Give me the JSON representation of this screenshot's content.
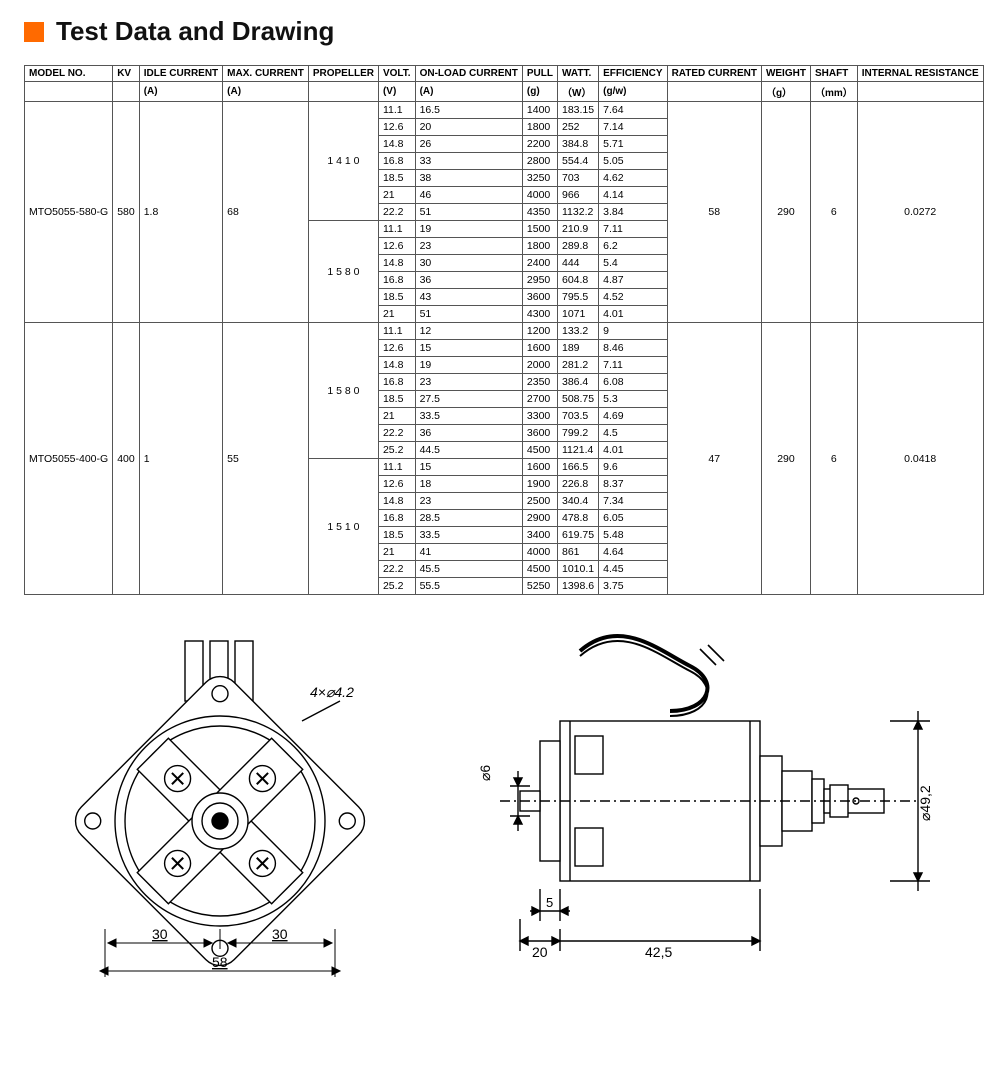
{
  "title": "Test Data and Drawing",
  "accent_color": "#ff6a00",
  "columns": [
    "MODEL NO.",
    "KV",
    "IDLE CURRENT",
    "MAX. CURRENT",
    "PROPELLER",
    "VOLT.",
    "ON-LOAD CURRENT",
    "PULL",
    "WATT.",
    "EFFICIENCY",
    "RATED CURRENT",
    "WEIGHT",
    "SHAFT",
    "INTERNAL RESISTANCE"
  ],
  "units": {
    "idle_current": "(A)",
    "max_current": "(A)",
    "volt": "(V)",
    "on_load_current": "(A)",
    "pull": "(g)",
    "watt": "（W）",
    "efficiency": "(g/w)",
    "weight": "（g）",
    "shaft": "（mm）"
  },
  "models": [
    {
      "model_no": "MTO5055-580-G",
      "kv": "580",
      "idle_current": "1.8",
      "max_current": "68",
      "rated_current": "58",
      "weight": "290",
      "shaft": "6",
      "internal_resistance": "0.0272",
      "prop_groups": [
        {
          "propeller": "1 4 1 0",
          "rows": [
            [
              "11.1",
              "16.5",
              "1400",
              "183.15",
              "7.64"
            ],
            [
              "12.6",
              "20",
              "1800",
              "252",
              "7.14"
            ],
            [
              "14.8",
              "26",
              "2200",
              "384.8",
              "5.71"
            ],
            [
              "16.8",
              "33",
              "2800",
              "554.4",
              "5.05"
            ],
            [
              "18.5",
              "38",
              "3250",
              "703",
              "4.62"
            ],
            [
              "21",
              "46",
              "4000",
              "966",
              "4.14"
            ],
            [
              "22.2",
              "51",
              "4350",
              "1132.2",
              "3.84"
            ]
          ]
        },
        {
          "propeller": "1 5 8 0",
          "rows": [
            [
              "11.1",
              "19",
              "1500",
              "210.9",
              "7.11"
            ],
            [
              "12.6",
              "23",
              "1800",
              "289.8",
              "6.2"
            ],
            [
              "14.8",
              "30",
              "2400",
              "444",
              "5.4"
            ],
            [
              "16.8",
              "36",
              "2950",
              "604.8",
              "4.87"
            ],
            [
              "18.5",
              "43",
              "3600",
              "795.5",
              "4.52"
            ],
            [
              "21",
              "51",
              "4300",
              "1071",
              "4.01"
            ]
          ]
        }
      ]
    },
    {
      "model_no": "MTO5055-400-G",
      "kv": "400",
      "idle_current": "1",
      "max_current": "55",
      "rated_current": "47",
      "weight": "290",
      "shaft": "6",
      "internal_resistance": "0.0418",
      "prop_groups": [
        {
          "propeller": "1 5 8 0",
          "rows": [
            [
              "11.1",
              "12",
              "1200",
              "133.2",
              "9"
            ],
            [
              "12.6",
              "15",
              "1600",
              "189",
              "8.46"
            ],
            [
              "14.8",
              "19",
              "2000",
              "281.2",
              "7.11"
            ],
            [
              "16.8",
              "23",
              "2350",
              "386.4",
              "6.08"
            ],
            [
              "18.5",
              "27.5",
              "2700",
              "508.75",
              "5.3"
            ],
            [
              "21",
              "33.5",
              "3300",
              "703.5",
              "4.69"
            ],
            [
              "22.2",
              "36",
              "3600",
              "799.2",
              "4.5"
            ],
            [
              "25.2",
              "44.5",
              "4500",
              "1121.4",
              "4.01"
            ]
          ]
        },
        {
          "propeller": "1 5 1 0",
          "rows": [
            [
              "11.1",
              "15",
              "1600",
              "166.5",
              "9.6"
            ],
            [
              "12.6",
              "18",
              "1900",
              "226.8",
              "8.37"
            ],
            [
              "14.8",
              "23",
              "2500",
              "340.4",
              "7.34"
            ],
            [
              "16.8",
              "28.5",
              "2900",
              "478.8",
              "6.05"
            ],
            [
              "18.5",
              "33.5",
              "3400",
              "619.75",
              "5.48"
            ],
            [
              "21",
              "41",
              "4000",
              "861",
              "4.64"
            ],
            [
              "22.2",
              "45.5",
              "4500",
              "1010.1",
              "4.45"
            ],
            [
              "25.2",
              "55.5",
              "5250",
              "1398.6",
              "3.75"
            ]
          ]
        }
      ]
    }
  ],
  "drawing": {
    "dim_hole": "4×⌀4.2",
    "dim_30a": "30",
    "dim_30b": "30",
    "dim_58": "58",
    "dim_shaft_dia": "⌀6",
    "dim_5": "5",
    "dim_20": "20",
    "dim_42_5": "42,5",
    "dim_body_dia": "⌀49,2"
  }
}
